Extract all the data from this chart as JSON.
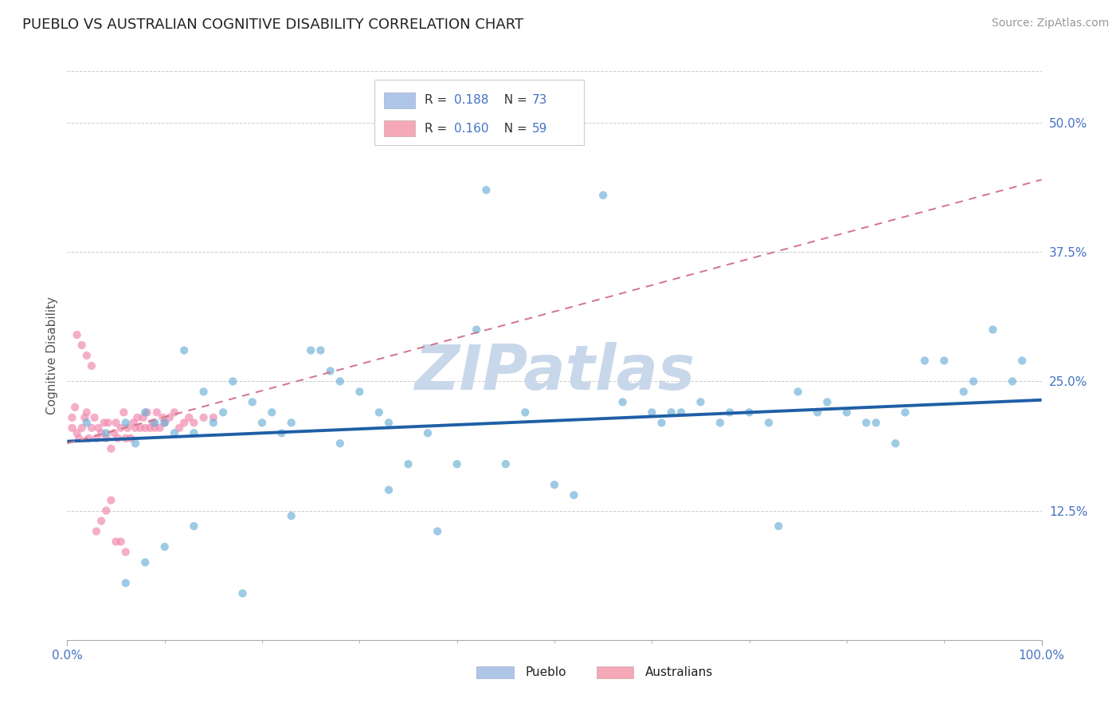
{
  "title": "PUEBLO VS AUSTRALIAN COGNITIVE DISABILITY CORRELATION CHART",
  "source_text": "Source: ZipAtlas.com",
  "ylabel": "Cognitive Disability",
  "ytick_labels": [
    "12.5%",
    "25.0%",
    "37.5%",
    "50.0%"
  ],
  "ytick_values": [
    0.125,
    0.25,
    0.375,
    0.5
  ],
  "xlim": [
    0.0,
    1.0
  ],
  "ylim": [
    0.0,
    0.55
  ],
  "pueblo_scatter": {
    "color": "#6aaed6",
    "alpha": 0.65,
    "size": 55,
    "x": [
      0.02,
      0.04,
      0.06,
      0.07,
      0.08,
      0.09,
      0.1,
      0.11,
      0.12,
      0.13,
      0.14,
      0.15,
      0.16,
      0.17,
      0.19,
      0.2,
      0.21,
      0.22,
      0.23,
      0.25,
      0.26,
      0.27,
      0.28,
      0.3,
      0.32,
      0.33,
      0.35,
      0.37,
      0.4,
      0.42,
      0.45,
      0.47,
      0.5,
      0.52,
      0.55,
      0.57,
      0.6,
      0.61,
      0.62,
      0.63,
      0.65,
      0.67,
      0.68,
      0.7,
      0.72,
      0.73,
      0.75,
      0.77,
      0.78,
      0.8,
      0.82,
      0.83,
      0.85,
      0.86,
      0.88,
      0.9,
      0.92,
      0.93,
      0.95,
      0.97,
      0.98,
      0.06,
      0.08,
      0.1,
      0.13,
      0.18,
      0.23,
      0.28,
      0.33,
      0.38,
      0.43
    ],
    "y": [
      0.21,
      0.2,
      0.21,
      0.19,
      0.22,
      0.21,
      0.21,
      0.2,
      0.28,
      0.2,
      0.24,
      0.21,
      0.22,
      0.25,
      0.23,
      0.21,
      0.22,
      0.2,
      0.21,
      0.28,
      0.28,
      0.26,
      0.25,
      0.24,
      0.22,
      0.21,
      0.17,
      0.2,
      0.17,
      0.3,
      0.17,
      0.22,
      0.15,
      0.14,
      0.43,
      0.23,
      0.22,
      0.21,
      0.22,
      0.22,
      0.23,
      0.21,
      0.22,
      0.22,
      0.21,
      0.11,
      0.24,
      0.22,
      0.23,
      0.22,
      0.21,
      0.21,
      0.19,
      0.22,
      0.27,
      0.27,
      0.24,
      0.25,
      0.3,
      0.25,
      0.27,
      0.055,
      0.075,
      0.09,
      0.11,
      0.045,
      0.12,
      0.19,
      0.145,
      0.105,
      0.435
    ]
  },
  "australian_scatter": {
    "color": "#f28cb1",
    "alpha": 0.7,
    "size": 55,
    "x": [
      0.005,
      0.005,
      0.008,
      0.01,
      0.012,
      0.015,
      0.018,
      0.02,
      0.022,
      0.025,
      0.028,
      0.03,
      0.032,
      0.035,
      0.038,
      0.04,
      0.042,
      0.045,
      0.048,
      0.05,
      0.052,
      0.055,
      0.058,
      0.06,
      0.062,
      0.065,
      0.068,
      0.07,
      0.072,
      0.075,
      0.078,
      0.08,
      0.082,
      0.085,
      0.088,
      0.09,
      0.092,
      0.095,
      0.098,
      0.1,
      0.105,
      0.11,
      0.115,
      0.12,
      0.125,
      0.13,
      0.14,
      0.15,
      0.01,
      0.015,
      0.02,
      0.025,
      0.03,
      0.035,
      0.04,
      0.045,
      0.05,
      0.055,
      0.06
    ],
    "y": [
      0.205,
      0.215,
      0.225,
      0.2,
      0.195,
      0.205,
      0.215,
      0.22,
      0.195,
      0.205,
      0.215,
      0.195,
      0.205,
      0.2,
      0.21,
      0.195,
      0.21,
      0.185,
      0.2,
      0.21,
      0.195,
      0.205,
      0.22,
      0.195,
      0.205,
      0.195,
      0.21,
      0.205,
      0.215,
      0.205,
      0.215,
      0.205,
      0.22,
      0.205,
      0.21,
      0.205,
      0.22,
      0.205,
      0.215,
      0.21,
      0.215,
      0.22,
      0.205,
      0.21,
      0.215,
      0.21,
      0.215,
      0.215,
      0.295,
      0.285,
      0.275,
      0.265,
      0.105,
      0.115,
      0.125,
      0.135,
      0.095,
      0.095,
      0.085
    ]
  },
  "pueblo_trendline": {
    "color": "#1f5fa6",
    "linewidth": 2.8,
    "x": [
      0.0,
      1.0
    ],
    "y": [
      0.192,
      0.232
    ]
  },
  "australian_trendline": {
    "color": "#d4748a",
    "linewidth": 1.4,
    "linestyle": "--",
    "x": [
      0.0,
      1.0
    ],
    "y": [
      0.19,
      0.445
    ]
  },
  "watermark": "ZIPatlas",
  "watermark_color": "#c8d8ea",
  "watermark_fontsize": 56,
  "background_color": "#ffffff",
  "grid_color": "#cccccc",
  "title_color": "#222222",
  "title_fontsize": 13,
  "axis_label_color": "#4472c4",
  "source_color": "#999999",
  "source_fontsize": 10,
  "legend_box_color": "#aec6e8",
  "legend_box_color2": "#f4a8b8",
  "r_color": "#4472c4",
  "n_color": "#4472c4"
}
